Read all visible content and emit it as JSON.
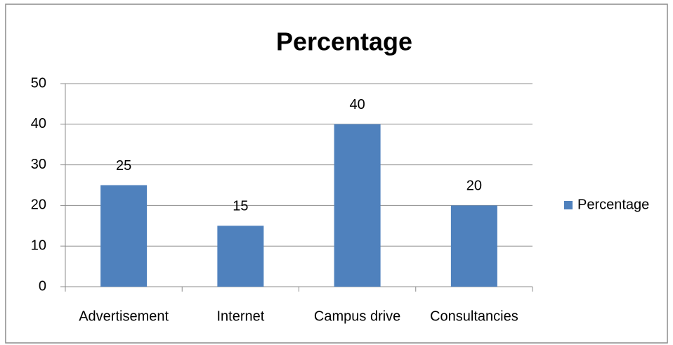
{
  "chart_data": {
    "type": "bar",
    "title": "Percentage",
    "categories": [
      "Advertisement",
      "Internet",
      "Campus drive",
      "Consultancies"
    ],
    "series": [
      {
        "name": "Percentage",
        "color": "#4f81bd",
        "values": [
          25,
          15,
          40,
          20
        ]
      }
    ],
    "ylim": [
      0,
      50
    ],
    "yticks": [
      0,
      10,
      20,
      30,
      40,
      50
    ],
    "grid": true,
    "legend": "right",
    "data_labels": true
  }
}
